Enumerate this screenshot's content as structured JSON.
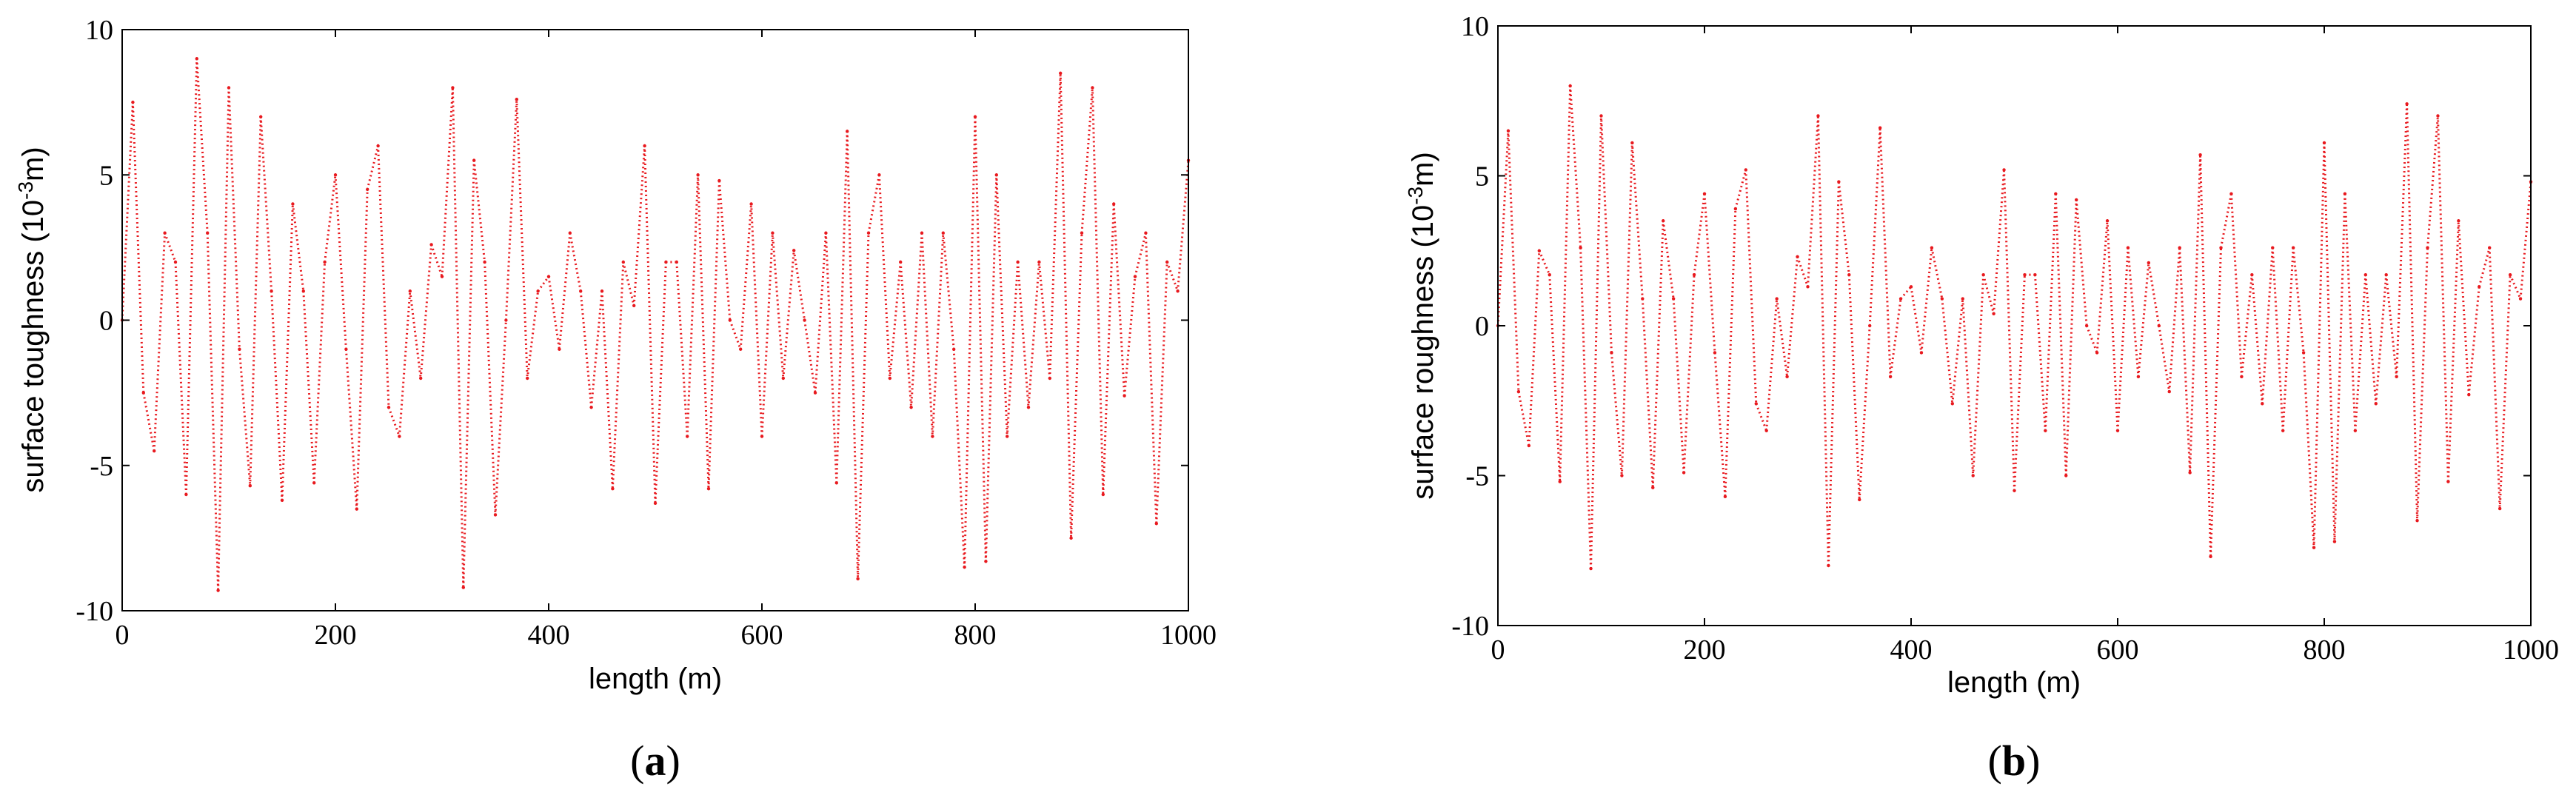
{
  "series_color": "#e8191e",
  "chart_data": [
    {
      "type": "scatter",
      "panel": "(a)",
      "panel_open": "(",
      "panel_letter": "a",
      "panel_close": ")",
      "xlabel": "length (m)",
      "ylabel_main": "surface toughness (10",
      "ylabel_sup": "-3",
      "ylabel_tail": "m)",
      "xlim": [
        0,
        1000
      ],
      "ylim": [
        -10,
        10
      ],
      "xticks": [
        0,
        200,
        400,
        600,
        800,
        1000
      ],
      "yticks": [
        -10,
        -5,
        0,
        5,
        10
      ],
      "grid": false,
      "x": [
        0,
        10,
        20,
        30,
        40,
        50,
        60,
        70,
        80,
        90,
        100,
        110,
        120,
        130,
        140,
        150,
        160,
        170,
        180,
        190,
        200,
        210,
        220,
        230,
        240,
        250,
        260,
        270,
        280,
        290,
        300,
        310,
        320,
        330,
        340,
        350,
        360,
        370,
        380,
        390,
        400,
        410,
        420,
        430,
        440,
        450,
        460,
        470,
        480,
        490,
        500,
        510,
        520,
        530,
        540,
        550,
        560,
        570,
        580,
        590,
        600,
        610,
        620,
        630,
        640,
        650,
        660,
        670,
        680,
        690,
        700,
        710,
        720,
        730,
        740,
        750,
        760,
        770,
        780,
        790,
        800,
        810,
        820,
        830,
        840,
        850,
        860,
        870,
        880,
        890,
        900,
        910,
        920,
        930,
        940,
        950,
        960,
        970,
        980,
        990,
        1000
      ],
      "y": [
        0,
        7.5,
        -2.5,
        -4.5,
        3,
        2,
        -6,
        9,
        3,
        -9.3,
        8,
        -1,
        -5.7,
        7,
        1,
        -6.2,
        4,
        1,
        -5.6,
        2,
        5,
        -1,
        -6.5,
        4.5,
        6,
        -3,
        -4,
        1,
        -2,
        2.6,
        1.5,
        8,
        -9.2,
        5.5,
        2,
        -6.7,
        0,
        7.6,
        -2,
        1,
        1.5,
        -1,
        3,
        1,
        -3,
        1,
        -5.8,
        2,
        0.5,
        6,
        -6.3,
        2,
        2,
        -4,
        5,
        -5.8,
        4.8,
        0,
        -1,
        4,
        -4,
        3,
        -2,
        2.4,
        0,
        -2.5,
        3,
        -5.6,
        6.5,
        -8.9,
        3,
        5,
        -2,
        2,
        -3,
        3,
        -4,
        3,
        -1,
        -8.5,
        7,
        -8.3,
        5,
        -4,
        2,
        -3,
        2,
        -2,
        8.5,
        -7.5,
        3,
        8,
        -6,
        4,
        -2.6,
        1.5,
        3,
        -7,
        2,
        1,
        5.5
      ]
    },
    {
      "type": "scatter",
      "panel": "(b)",
      "panel_open": "(",
      "panel_letter": "b",
      "panel_close": ")",
      "xlabel": "length (m)",
      "ylabel_main": "surface roughness (10",
      "ylabel_sup": "-3",
      "ylabel_tail": "m)",
      "xlim": [
        0,
        1000
      ],
      "ylim": [
        -10,
        10
      ],
      "xticks": [
        0,
        200,
        400,
        600,
        800,
        1000
      ],
      "yticks": [
        -10,
        -5,
        0,
        5,
        10
      ],
      "grid": false,
      "x": [
        0,
        10,
        20,
        30,
        40,
        50,
        60,
        70,
        80,
        90,
        100,
        110,
        120,
        130,
        140,
        150,
        160,
        170,
        180,
        190,
        200,
        210,
        220,
        230,
        240,
        250,
        260,
        270,
        280,
        290,
        300,
        310,
        320,
        330,
        340,
        350,
        360,
        370,
        380,
        390,
        400,
        410,
        420,
        430,
        440,
        450,
        460,
        470,
        480,
        490,
        500,
        510,
        520,
        530,
        540,
        550,
        560,
        570,
        580,
        590,
        600,
        610,
        620,
        630,
        640,
        650,
        660,
        670,
        680,
        690,
        700,
        710,
        720,
        730,
        740,
        750,
        760,
        770,
        780,
        790,
        800,
        810,
        820,
        830,
        840,
        850,
        860,
        870,
        880,
        890,
        900,
        910,
        920,
        930,
        940,
        950,
        960,
        970,
        980,
        990,
        1000
      ],
      "y": [
        0,
        6.5,
        -2.2,
        -4,
        2.5,
        1.7,
        -5.2,
        8,
        2.6,
        -8.1,
        7,
        -0.9,
        -5,
        6.1,
        0.9,
        -5.4,
        3.5,
        0.9,
        -4.9,
        1.7,
        4.4,
        -0.9,
        -5.7,
        3.9,
        5.2,
        -2.6,
        -3.5,
        0.9,
        -1.7,
        2.3,
        1.3,
        7,
        -8,
        4.8,
        1.7,
        -5.8,
        0,
        6.6,
        -1.7,
        0.9,
        1.3,
        -0.9,
        2.6,
        0.9,
        -2.6,
        0.9,
        -5,
        1.7,
        0.4,
        5.2,
        -5.5,
        1.7,
        1.7,
        -3.5,
        4.4,
        -5,
        4.2,
        0,
        -0.9,
        3.5,
        -3.5,
        2.6,
        -1.7,
        2.1,
        0,
        -2.2,
        2.6,
        -4.9,
        5.7,
        -7.7,
        2.6,
        4.4,
        -1.7,
        1.7,
        -2.6,
        2.6,
        -3.5,
        2.6,
        -0.9,
        -7.4,
        6.1,
        -7.2,
        4.4,
        -3.5,
        1.7,
        -2.6,
        1.7,
        -1.7,
        7.4,
        -6.5,
        2.6,
        7,
        -5.2,
        3.5,
        -2.3,
        1.3,
        2.6,
        -6.1,
        1.7,
        0.9,
        4.8
      ]
    }
  ]
}
